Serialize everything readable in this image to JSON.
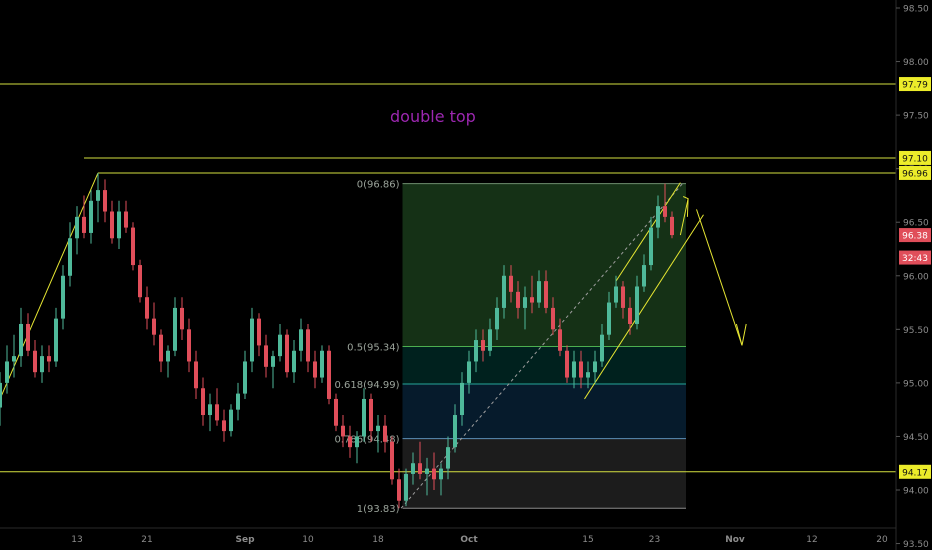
{
  "chart_data": {
    "type": "candlestick",
    "annotation": "double top",
    "ylim": [
      93.1,
      98.6
    ],
    "xlim": [
      0,
      128
    ],
    "y_ticks": [
      "93.50",
      "94.00",
      "94.50",
      "95.00",
      "95.50",
      "96.00",
      "96.50",
      "97.00",
      "97.50",
      "98.00",
      "98.50"
    ],
    "y_tick_values": [
      93.5,
      94.0,
      94.5,
      95.0,
      95.5,
      96.0,
      96.5,
      97.0,
      97.5,
      98.0,
      98.5
    ],
    "x_ticks": [
      {
        "label": "13",
        "x": 11
      },
      {
        "label": "21",
        "x": 21
      },
      {
        "label": "Sep",
        "x": 35
      },
      {
        "label": "10",
        "x": 44
      },
      {
        "label": "18",
        "x": 54
      },
      {
        "label": "Oct",
        "x": 67
      },
      {
        "label": "15",
        "x": 84
      },
      {
        "label": "23",
        "x": 93.5
      },
      {
        "label": "Nov",
        "x": 105
      },
      {
        "label": "12",
        "x": 116
      },
      {
        "label": "20",
        "x": 126
      }
    ],
    "price_labels": [
      {
        "text": "97.79",
        "value": 97.79,
        "style": "yellow"
      },
      {
        "text": "97.10",
        "value": 97.1,
        "style": "yellow"
      },
      {
        "text": "96.96",
        "value": 96.96,
        "style": "yellow"
      },
      {
        "text": "96.38",
        "value": 96.38,
        "style": "red"
      },
      {
        "text": "32:43",
        "value": 96.17,
        "style": "red"
      },
      {
        "text": "94.17",
        "value": 94.17,
        "style": "yellow"
      }
    ],
    "horizontal_levels": [
      {
        "value": 97.79,
        "x_start": 0
      },
      {
        "value": 97.1,
        "x_start": 12
      },
      {
        "value": 96.96,
        "x_start": 14
      },
      {
        "value": 94.17,
        "x_start": 0
      }
    ],
    "fibonacci": {
      "x_start": 57.5,
      "x_end": 98,
      "levels": [
        {
          "ratio": 0,
          "label": "0(96.86)",
          "value": 96.86
        },
        {
          "ratio": 0.5,
          "label": "0.5(95.34)",
          "value": 95.34
        },
        {
          "ratio": 0.618,
          "label": "0.618(94.99)",
          "value": 94.99
        },
        {
          "ratio": 0.786,
          "label": "0.786(94.48)",
          "value": 94.48
        },
        {
          "ratio": 1,
          "label": "1(93.83)",
          "value": 93.83
        }
      ]
    },
    "ohlc": [
      [
        94.77,
        95.1,
        94.6,
        95.0
      ],
      [
        95.0,
        95.35,
        94.9,
        95.2
      ],
      [
        95.2,
        95.45,
        95.05,
        95.25
      ],
      [
        95.25,
        95.7,
        95.15,
        95.55
      ],
      [
        95.55,
        95.65,
        95.25,
        95.3
      ],
      [
        95.3,
        95.4,
        95.05,
        95.1
      ],
      [
        95.1,
        95.35,
        95.0,
        95.25
      ],
      [
        95.25,
        95.35,
        95.1,
        95.2
      ],
      [
        95.2,
        95.7,
        95.15,
        95.6
      ],
      [
        95.6,
        96.1,
        95.5,
        96.0
      ],
      [
        96.0,
        96.5,
        95.9,
        96.35
      ],
      [
        96.35,
        96.65,
        96.2,
        96.55
      ],
      [
        96.55,
        96.75,
        96.35,
        96.4
      ],
      [
        96.4,
        96.8,
        96.3,
        96.7
      ],
      [
        96.7,
        96.96,
        96.5,
        96.8
      ],
      [
        96.8,
        96.9,
        96.5,
        96.6
      ],
      [
        96.6,
        96.7,
        96.3,
        96.35
      ],
      [
        96.35,
        96.7,
        96.25,
        96.6
      ],
      [
        96.6,
        96.7,
        96.4,
        96.45
      ],
      [
        96.45,
        96.5,
        96.05,
        96.1
      ],
      [
        96.1,
        96.15,
        95.75,
        95.8
      ],
      [
        95.8,
        95.9,
        95.5,
        95.6
      ],
      [
        95.6,
        95.75,
        95.35,
        95.45
      ],
      [
        95.45,
        95.5,
        95.1,
        95.2
      ],
      [
        95.2,
        95.35,
        95.05,
        95.3
      ],
      [
        95.3,
        95.8,
        95.25,
        95.7
      ],
      [
        95.7,
        95.8,
        95.4,
        95.5
      ],
      [
        95.5,
        95.6,
        95.1,
        95.2
      ],
      [
        95.2,
        95.3,
        94.85,
        94.95
      ],
      [
        94.95,
        95.05,
        94.6,
        94.7
      ],
      [
        94.7,
        94.9,
        94.55,
        94.8
      ],
      [
        94.8,
        94.95,
        94.6,
        94.65
      ],
      [
        94.65,
        94.75,
        94.45,
        94.55
      ],
      [
        94.55,
        94.8,
        94.5,
        94.75
      ],
      [
        94.75,
        95.0,
        94.65,
        94.9
      ],
      [
        94.9,
        95.3,
        94.85,
        95.2
      ],
      [
        95.2,
        95.7,
        95.1,
        95.6
      ],
      [
        95.6,
        95.65,
        95.25,
        95.35
      ],
      [
        95.35,
        95.45,
        95.05,
        95.15
      ],
      [
        95.15,
        95.3,
        94.95,
        95.25
      ],
      [
        95.25,
        95.55,
        95.2,
        95.45
      ],
      [
        95.45,
        95.5,
        95.05,
        95.1
      ],
      [
        95.1,
        95.4,
        95.0,
        95.3
      ],
      [
        95.3,
        95.6,
        95.2,
        95.5
      ],
      [
        95.5,
        95.55,
        95.1,
        95.2
      ],
      [
        95.2,
        95.3,
        94.95,
        95.05
      ],
      [
        95.05,
        95.35,
        95.0,
        95.3
      ],
      [
        95.3,
        95.35,
        94.8,
        94.85
      ],
      [
        94.85,
        94.9,
        94.55,
        94.6
      ],
      [
        94.6,
        94.7,
        94.4,
        94.5
      ],
      [
        94.5,
        94.6,
        94.3,
        94.4
      ],
      [
        94.4,
        94.55,
        94.25,
        94.5
      ],
      [
        94.5,
        94.95,
        94.45,
        94.85
      ],
      [
        94.85,
        94.9,
        94.45,
        94.55
      ],
      [
        94.55,
        94.7,
        94.35,
        94.6
      ],
      [
        94.6,
        94.7,
        94.35,
        94.45
      ],
      [
        94.45,
        94.5,
        94.05,
        94.1
      ],
      [
        94.1,
        94.2,
        93.83,
        93.9
      ],
      [
        93.9,
        94.2,
        93.85,
        94.15
      ],
      [
        94.15,
        94.35,
        94.05,
        94.25
      ],
      [
        94.25,
        94.45,
        94.1,
        94.15
      ],
      [
        94.15,
        94.3,
        93.95,
        94.2
      ],
      [
        94.2,
        94.35,
        94.0,
        94.1
      ],
      [
        94.1,
        94.25,
        93.95,
        94.2
      ],
      [
        94.2,
        94.5,
        94.1,
        94.4
      ],
      [
        94.4,
        94.8,
        94.35,
        94.7
      ],
      [
        94.7,
        95.1,
        94.6,
        95.0
      ],
      [
        95.0,
        95.3,
        94.9,
        95.2
      ],
      [
        95.2,
        95.5,
        95.1,
        95.4
      ],
      [
        95.4,
        95.5,
        95.2,
        95.3
      ],
      [
        95.3,
        95.6,
        95.25,
        95.5
      ],
      [
        95.5,
        95.8,
        95.4,
        95.7
      ],
      [
        95.7,
        96.1,
        95.6,
        96.0
      ],
      [
        96.0,
        96.1,
        95.75,
        95.85
      ],
      [
        95.85,
        95.95,
        95.6,
        95.7
      ],
      [
        95.7,
        95.9,
        95.5,
        95.8
      ],
      [
        95.8,
        96.0,
        95.65,
        95.75
      ],
      [
        95.75,
        96.05,
        95.7,
        95.95
      ],
      [
        95.95,
        96.05,
        95.65,
        95.7
      ],
      [
        95.7,
        95.8,
        95.45,
        95.5
      ],
      [
        95.5,
        95.6,
        95.25,
        95.3
      ],
      [
        95.3,
        95.35,
        95.0,
        95.05
      ],
      [
        95.05,
        95.3,
        94.95,
        95.2
      ],
      [
        95.2,
        95.3,
        94.95,
        95.05
      ],
      [
        95.05,
        95.2,
        94.95,
        95.1
      ],
      [
        95.1,
        95.3,
        95.0,
        95.2
      ],
      [
        95.2,
        95.55,
        95.15,
        95.45
      ],
      [
        95.45,
        95.85,
        95.4,
        95.75
      ],
      [
        95.75,
        96.0,
        95.7,
        95.9
      ],
      [
        95.9,
        95.95,
        95.6,
        95.7
      ],
      [
        95.7,
        95.8,
        95.45,
        95.55
      ],
      [
        95.55,
        96.0,
        95.5,
        95.9
      ],
      [
        95.9,
        96.2,
        95.85,
        96.1
      ],
      [
        96.1,
        96.55,
        96.05,
        96.45
      ],
      [
        96.45,
        96.75,
        96.35,
        96.65
      ],
      [
        96.65,
        96.86,
        96.5,
        96.55
      ],
      [
        96.55,
        96.6,
        96.35,
        96.38
      ]
    ]
  }
}
